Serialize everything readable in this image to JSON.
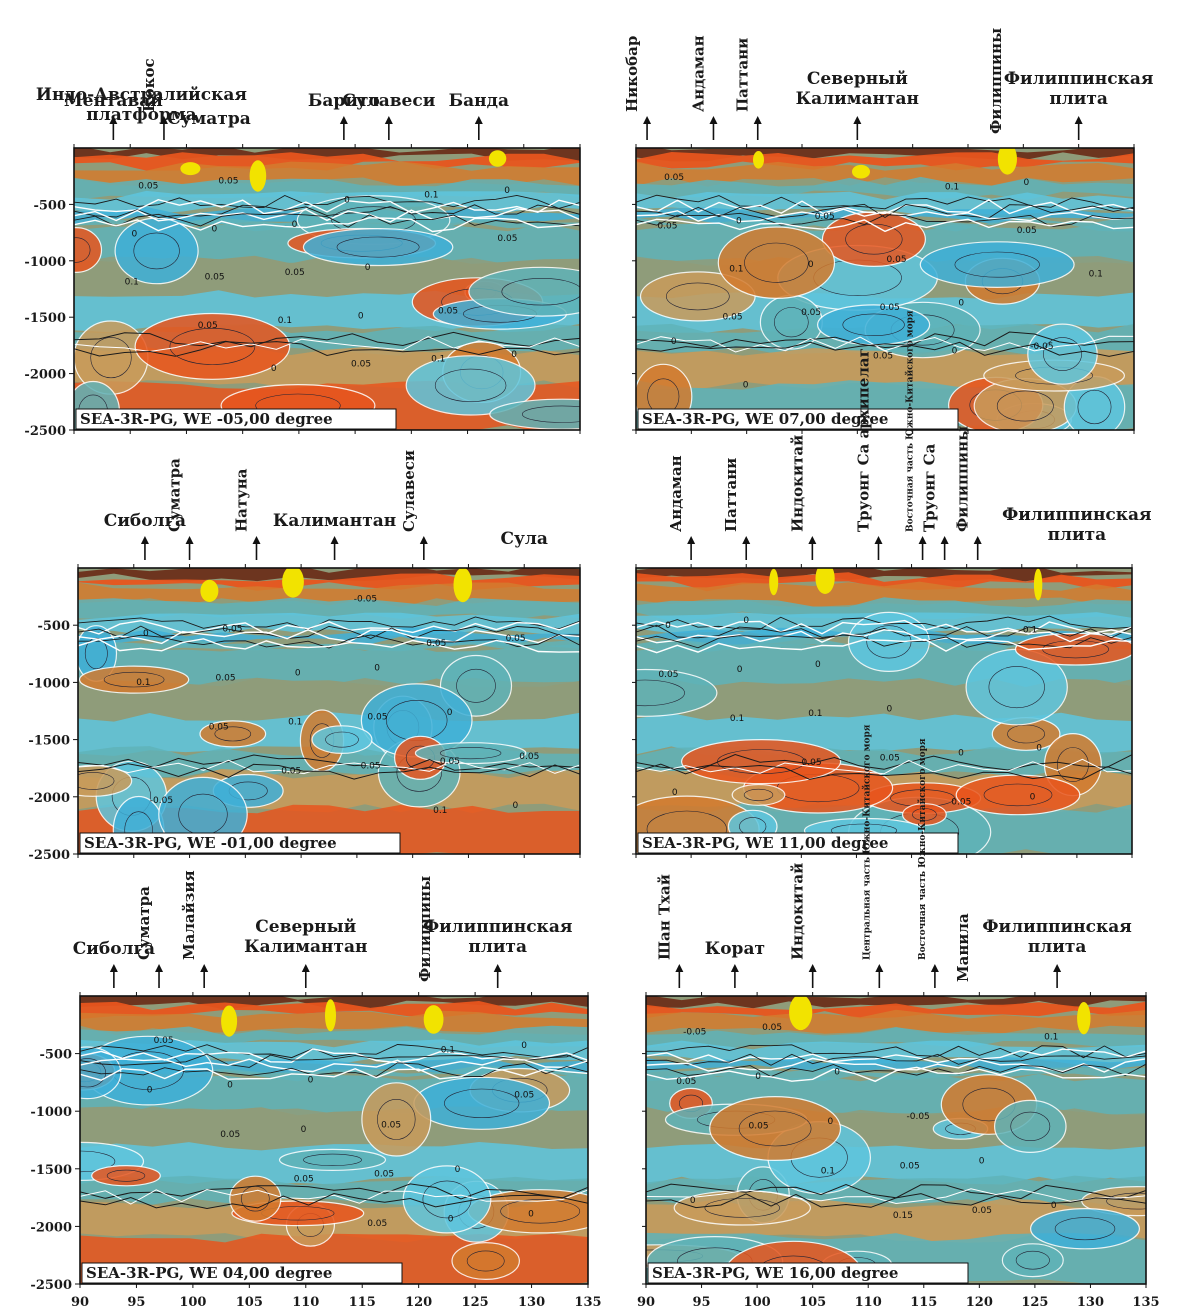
{
  "chart_data": {
    "type": "heatmap",
    "panels": [
      {
        "caption": "SEA-3R-PG, WE -05,00 degree",
        "xlim": [
          90,
          135
        ],
        "ylim": [
          -2500,
          0
        ],
        "yticks": [
          -500,
          -1000,
          -1500,
          -2000,
          -2500
        ],
        "contour_labels": [
          "0",
          "0",
          "0.05",
          "0.1",
          "0.05",
          "0.1",
          "0.05",
          "0.1",
          "0.05",
          "0",
          "0",
          "0.1",
          "0",
          "0.05",
          "0",
          "0.05",
          "0",
          "0.05",
          "0",
          "0",
          "0.05"
        ],
        "regions": [
          {
            "text": "Индо-Австралийская платформа",
            "x": 96,
            "arrow": false
          },
          {
            "text": "Ментавай",
            "x": 93.5,
            "arrow": true
          },
          {
            "text": "Кокос",
            "x": 98,
            "arrow": true,
            "vertical": true
          },
          {
            "text": "Суматра",
            "x": 102,
            "arrow": false
          },
          {
            "text": "Барито",
            "x": 114,
            "arrow": true
          },
          {
            "text": "Сулавеси",
            "x": 118,
            "arrow": true
          },
          {
            "text": "Банда",
            "x": 126,
            "arrow": true
          }
        ]
      },
      {
        "caption": "SEA-3R-PG, WE 07,00 degree",
        "xlim": [
          90,
          135
        ],
        "ylim": [
          -2500,
          0
        ],
        "yticks": [],
        "contour_labels": [
          "0.05",
          "0.1",
          "0.05",
          "0.1",
          "0.05",
          "0.05",
          "0.1",
          "0.05",
          "0",
          "0",
          "0.05",
          "0",
          "0",
          "0.05",
          "-0.05",
          "0",
          "0.05",
          "0.05",
          "0",
          "0"
        ],
        "regions": [
          {
            "text": "Никобар",
            "x": 91,
            "arrow": true,
            "vertical": true
          },
          {
            "text": "Андаман",
            "x": 97,
            "arrow": true,
            "vertical": true
          },
          {
            "text": "Паттани",
            "x": 101,
            "arrow": true,
            "vertical": true
          },
          {
            "text": "Северный Калимантан",
            "x": 110,
            "arrow": true
          },
          {
            "text": "Филиппины",
            "x": 123,
            "arrow": false,
            "vertical": true
          },
          {
            "text": "Филиппинская плита",
            "x": 130,
            "arrow": true
          }
        ]
      },
      {
        "caption": "SEA-3R-PG, WE -01,00 degree",
        "xlim": [
          90,
          135
        ],
        "ylim": [
          -2500,
          0
        ],
        "yticks": [
          -500,
          -1000,
          -1500,
          -2000,
          -2500
        ],
        "contour_labels": [
          "0.05",
          "-0.05",
          "0.05",
          "0.05",
          "0.1",
          "0.05",
          "0.1",
          "0.05",
          "0.1",
          "0.05",
          "0",
          "0",
          "0.05",
          "0.05",
          "0",
          "0.05",
          "-0.05",
          "0.05",
          "0",
          "0"
        ],
        "regions": [
          {
            "text": "Сиболга",
            "x": 96,
            "arrow": true
          },
          {
            "text": "Суматра",
            "x": 100,
            "arrow": true,
            "vertical": true
          },
          {
            "text": "Натуна",
            "x": 106,
            "arrow": true,
            "vertical": true
          },
          {
            "text": "Калимантан",
            "x": 113,
            "arrow": true
          },
          {
            "text": "Сулавеси",
            "x": 121,
            "arrow": true,
            "vertical": true
          },
          {
            "text": "Сула",
            "x": 130,
            "arrow": false
          }
        ]
      },
      {
        "caption": "SEA-3R-PG, WE 11,00 degree",
        "xlim": [
          90,
          135
        ],
        "ylim": [
          -2500,
          0
        ],
        "yticks": [],
        "contour_labels": [
          "0.05",
          "0.1",
          "0.05",
          "0.1",
          "0.05",
          "0.05",
          "0.1",
          "0",
          "0",
          "0",
          "0",
          "0",
          "0",
          "0",
          "0",
          "0"
        ],
        "regions": [
          {
            "text": "Андаман",
            "x": 95,
            "arrow": true,
            "vertical": true
          },
          {
            "text": "Паттани",
            "x": 100,
            "arrow": true,
            "vertical": true
          },
          {
            "text": "Индокитай",
            "x": 106,
            "arrow": true,
            "vertical": true
          },
          {
            "text": "Труонг Са архипелаг",
            "x": 112,
            "arrow": true,
            "vertical": true
          },
          {
            "text": "Восточная часть Южно-Китайского моря",
            "x": 116,
            "arrow": true,
            "vertical": true
          },
          {
            "text": "Труонг Са",
            "x": 118,
            "arrow": true,
            "vertical": true
          },
          {
            "text": "Филиппины",
            "x": 121,
            "arrow": true,
            "vertical": true
          },
          {
            "text": "Филиппинская плита",
            "x": 130,
            "arrow": false
          }
        ]
      },
      {
        "caption": "SEA-3R-PG, WE 04,00 degree",
        "xlim": [
          90,
          135
        ],
        "ylim": [
          -2500,
          0
        ],
        "yticks": [
          -500,
          -1000,
          -1500,
          -2000,
          -2500
        ],
        "contour_labels": [
          "0.05",
          "0.1",
          "0.05",
          "0.05",
          "0.05",
          "0",
          "0",
          "0",
          "0.05",
          "0",
          "0",
          "0.05",
          "0",
          "0",
          "0.05",
          "0"
        ],
        "regions": [
          {
            "text": "Сиболга",
            "x": 93,
            "arrow": true
          },
          {
            "text": "Суматра",
            "x": 97,
            "arrow": true,
            "vertical": true
          },
          {
            "text": "Малайзия",
            "x": 101,
            "arrow": true,
            "vertical": true
          },
          {
            "text": "Северный Калимантан",
            "x": 110,
            "arrow": true
          },
          {
            "text": "Филиппины",
            "x": 121,
            "arrow": false,
            "vertical": true
          },
          {
            "text": "Филиппинская плита",
            "x": 127,
            "arrow": true
          }
        ],
        "xticks": [
          90,
          95,
          100,
          105,
          110,
          115,
          120,
          125,
          130,
          135
        ]
      },
      {
        "caption": "SEA-3R-PG, WE 16,00 degree",
        "xlim": [
          90,
          135
        ],
        "ylim": [
          -2500,
          0
        ],
        "yticks": [],
        "contour_labels": [
          "0.15",
          "0.1",
          "0.05",
          "0.05",
          "0.1",
          "0.05",
          "0.05",
          "0",
          "0",
          "-0.05",
          "0",
          "0",
          "-0.05",
          "0",
          "0.05",
          "0"
        ],
        "regions": [
          {
            "text": "Шан Тхай",
            "x": 93,
            "arrow": true,
            "vertical": true
          },
          {
            "text": "Корат",
            "x": 98,
            "arrow": true
          },
          {
            "text": "Индокитай",
            "x": 105,
            "arrow": true,
            "vertical": true
          },
          {
            "text": "Центральная часть Южно-Китайского моря",
            "x": 111,
            "arrow": true,
            "vertical": true
          },
          {
            "text": "Восточная часть Южно-Китайского моря",
            "x": 116,
            "arrow": true,
            "vertical": true
          },
          {
            "text": "Манила",
            "x": 119,
            "arrow": false,
            "vertical": true
          },
          {
            "text": "Филиппинская плита",
            "x": 127,
            "arrow": true
          }
        ],
        "xticks": [
          90,
          95,
          100,
          105,
          110,
          115,
          120,
          125,
          130,
          135
        ]
      }
    ],
    "grid": false,
    "legend": "none"
  },
  "colors": {
    "hot": "#e8551d",
    "orange": "#d37b2e",
    "tan": "#c99b5b",
    "olive": "#8f9c7a",
    "teal": "#5fb3b8",
    "blue": "#5ec6de",
    "deep": "#3fb0d8",
    "dark": "#6b2f1a",
    "yellow": "#f2e300"
  }
}
